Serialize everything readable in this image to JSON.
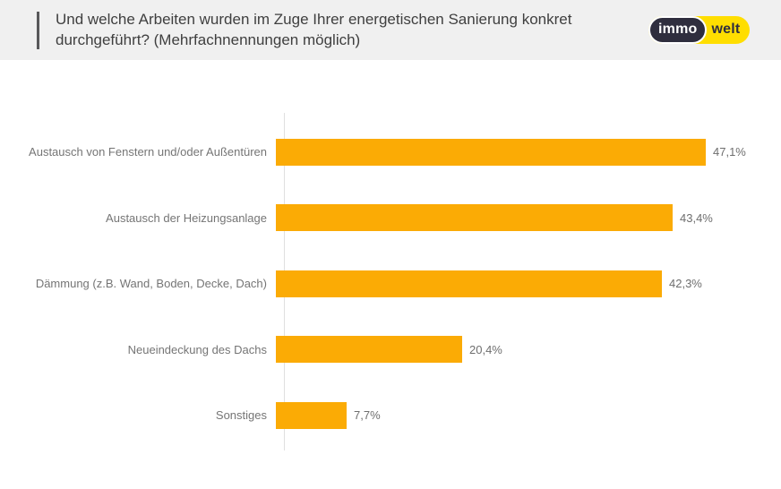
{
  "header": {
    "title": "Und welche Arbeiten wurden im Zuge Ihrer energetischen Sanierung konkret durchgeführt? (Mehrfachnennungen möglich)",
    "logo": {
      "part1": "immo",
      "part2": "welt"
    }
  },
  "colors": {
    "bar": "#FBAB05",
    "header_bg": "#F0F0F0",
    "accent_bar": "#58585A",
    "title_text": "#3F3F3F",
    "label_text": "#757575",
    "value_text": "#6E6E6E",
    "axis_line": "#E0E0E0",
    "logo_yellow": "#FFDE00",
    "logo_dark": "#2F2E3E"
  },
  "chart_data": {
    "type": "bar",
    "orientation": "horizontal",
    "title": "Und welche Arbeiten wurden im Zuge Ihrer energetischen Sanierung konkret durchgeführt? (Mehrfachnennungen möglich)",
    "categories": [
      "Austausch von Fenstern und/oder Außentüren",
      "Austausch der Heizungsanlage",
      "Dämmung (z.B. Wand, Boden, Decke, Dach)",
      "Neueindeckung des Dachs",
      "Sonstiges"
    ],
    "values": [
      47.1,
      43.4,
      42.3,
      20.4,
      7.7
    ],
    "value_labels": [
      "47,1%",
      "43,4%",
      "42,3%",
      "20,4%",
      "7,7%"
    ],
    "unit": "%",
    "xlabel": "",
    "ylabel": "",
    "xlim": [
      0,
      53
    ],
    "grid": false,
    "legend": false,
    "bar_color": "#FBAB05",
    "data_labels_position": "outside-end"
  }
}
